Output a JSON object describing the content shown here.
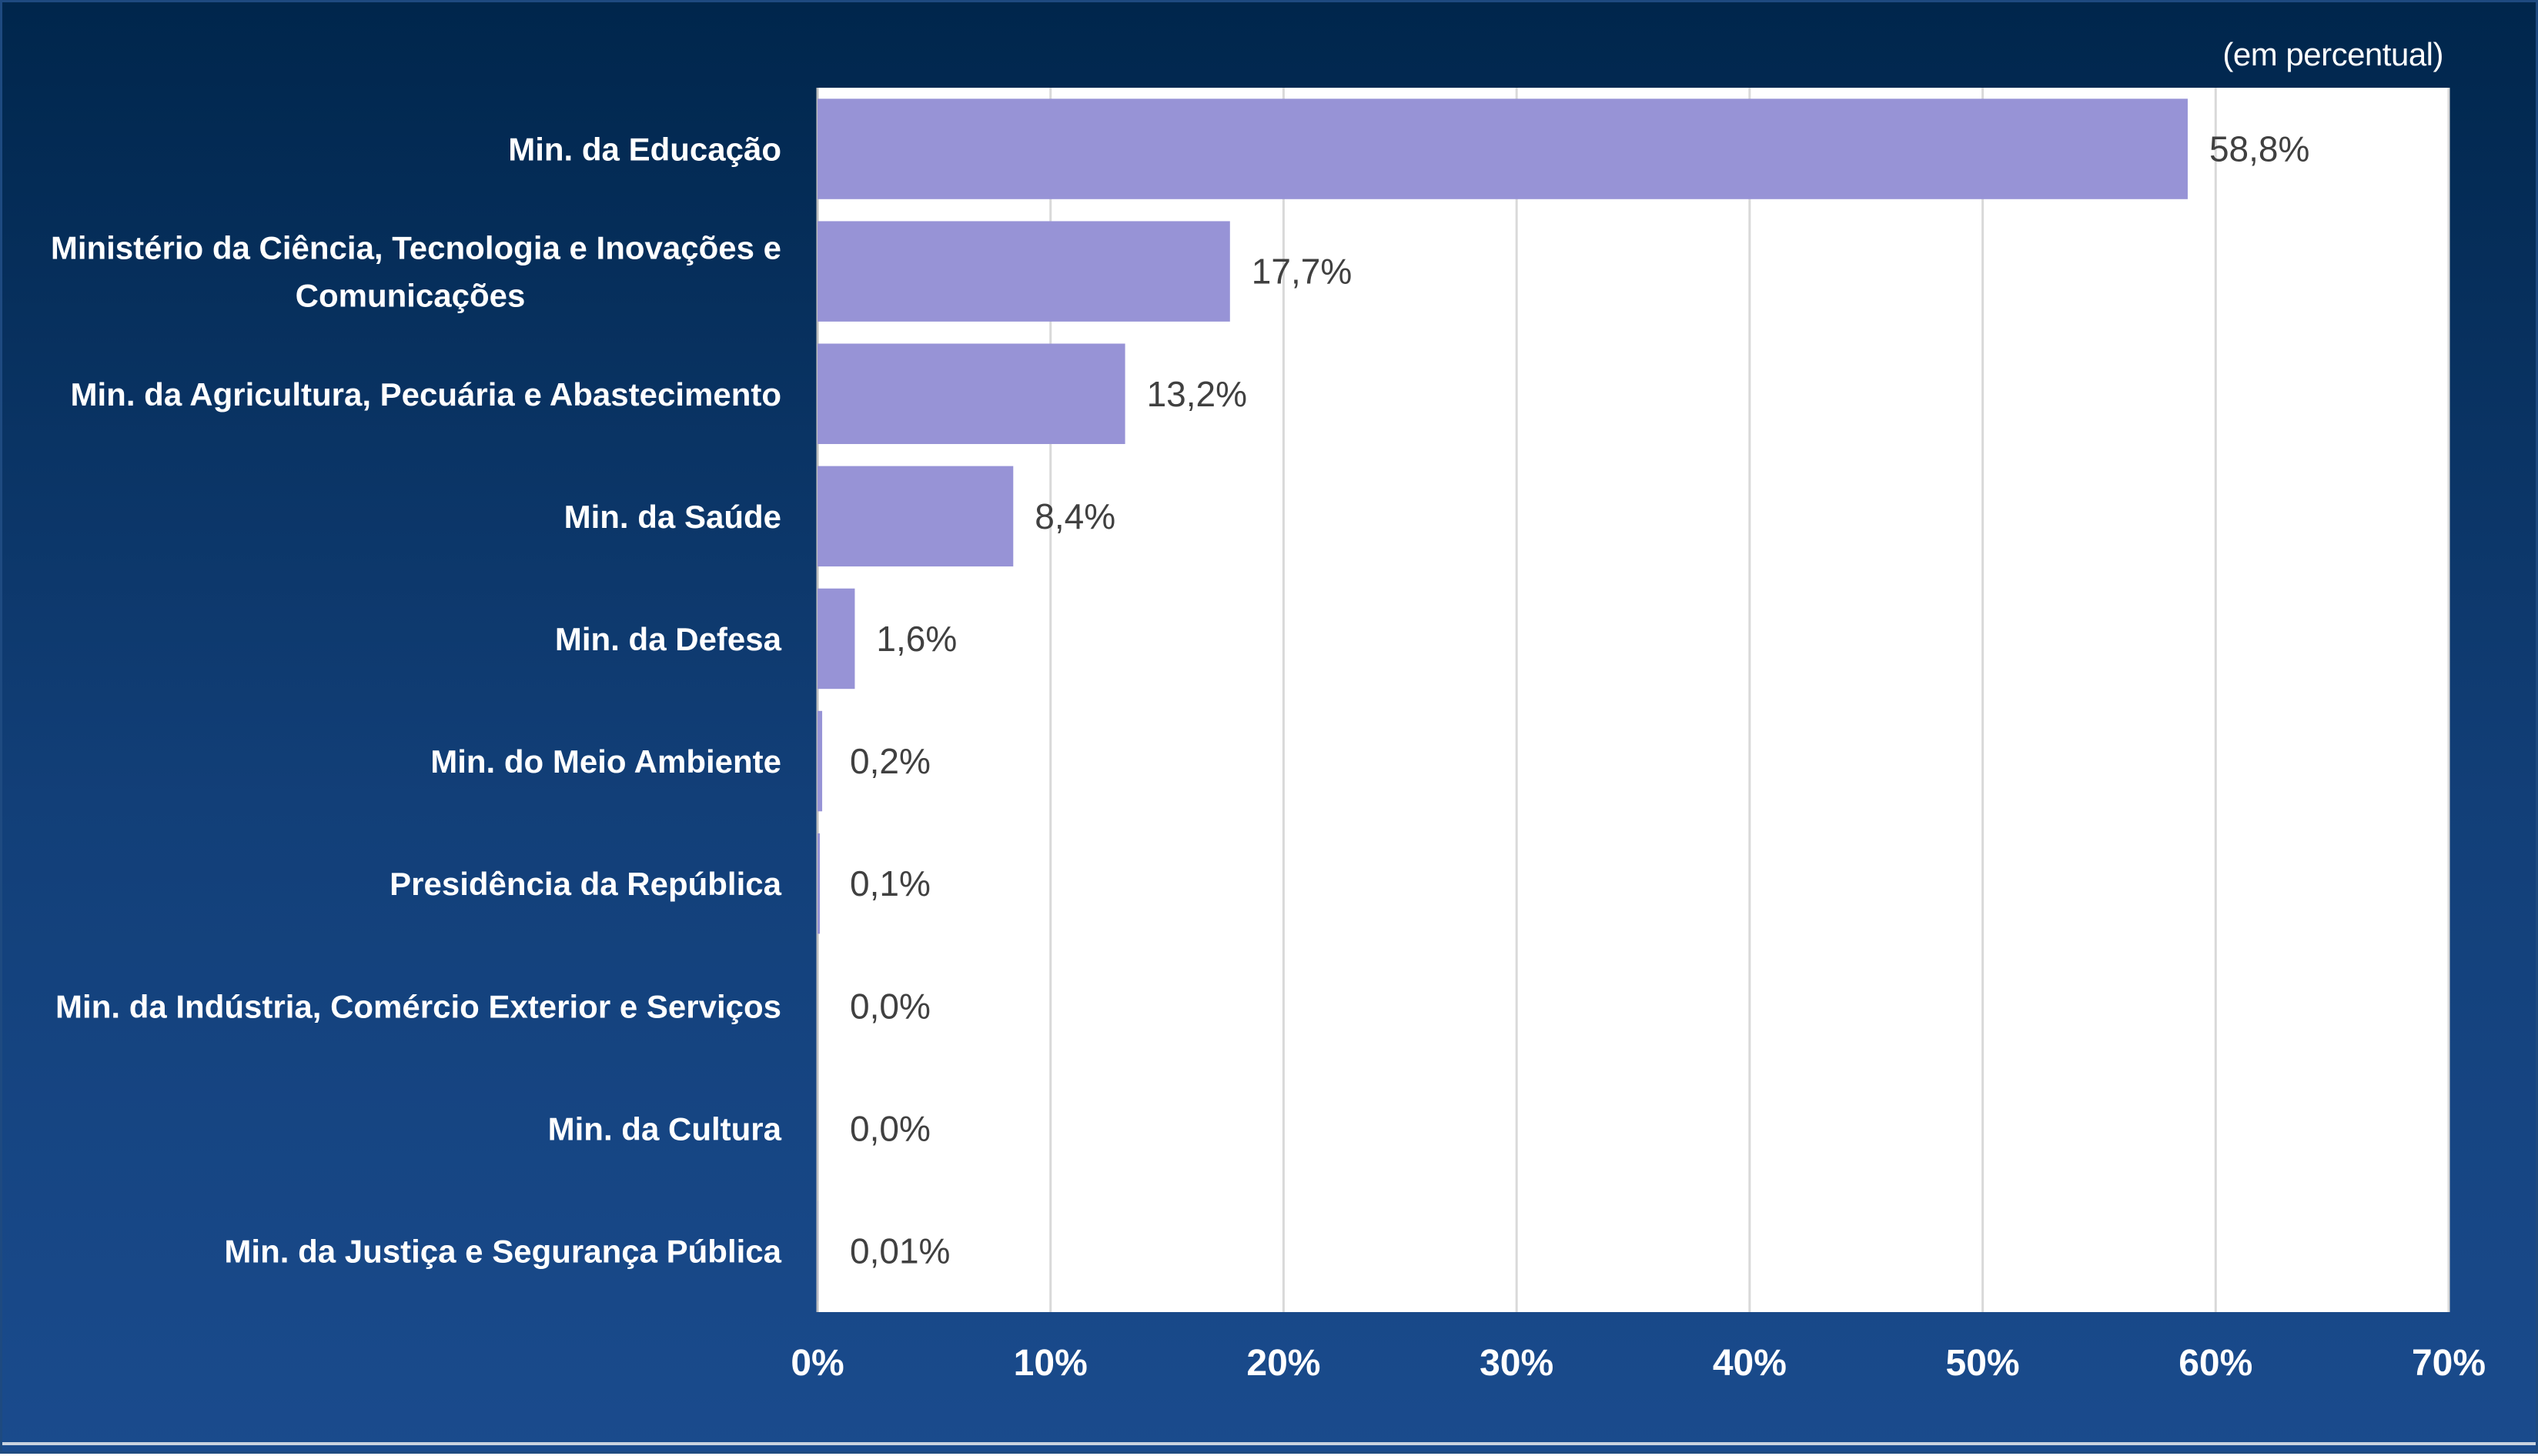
{
  "chart_data": {
    "type": "bar",
    "orientation": "horizontal",
    "unit_note": "(em percentual)",
    "categories": [
      [
        "Min. da Educação"
      ],
      [
        "Ministério da Ciência, Tecnologia e Inovações e",
        "Comunicações"
      ],
      [
        "Min. da Agricultura, Pecuária e Abastecimento"
      ],
      [
        "Min. da Saúde"
      ],
      [
        "Min. da Defesa"
      ],
      [
        "Min. do Meio Ambiente"
      ],
      [
        "Presidência da República"
      ],
      [
        "Min. da Indústria, Comércio Exterior e Serviços"
      ],
      [
        "Min. da Cultura"
      ],
      [
        "Min. da Justiça e Segurança Pública"
      ]
    ],
    "values": [
      58.8,
      17.7,
      13.2,
      8.4,
      1.6,
      0.2,
      0.1,
      0.0,
      0.0,
      0.01
    ],
    "data_labels": [
      "58,8%",
      "17,7%",
      "13,2%",
      "8,4%",
      "1,6%",
      "0,2%",
      "0,1%",
      "0,0%",
      "0,0%",
      "0,01%"
    ],
    "xlim": [
      0,
      70
    ],
    "xticks": [
      0,
      10,
      20,
      30,
      40,
      50,
      60,
      70
    ],
    "xtick_labels": [
      "0%",
      "10%",
      "20%",
      "30%",
      "40%",
      "50%",
      "60%",
      "70%"
    ],
    "grid": true,
    "colors": {
      "bar": "#9793d6",
      "plot_background": "#ffffff",
      "gridline": "#d9d9d9",
      "data_label": "#404040",
      "text": "#ffffff",
      "background_top": "#00264c",
      "background_bottom": "#1a4b8d"
    }
  }
}
